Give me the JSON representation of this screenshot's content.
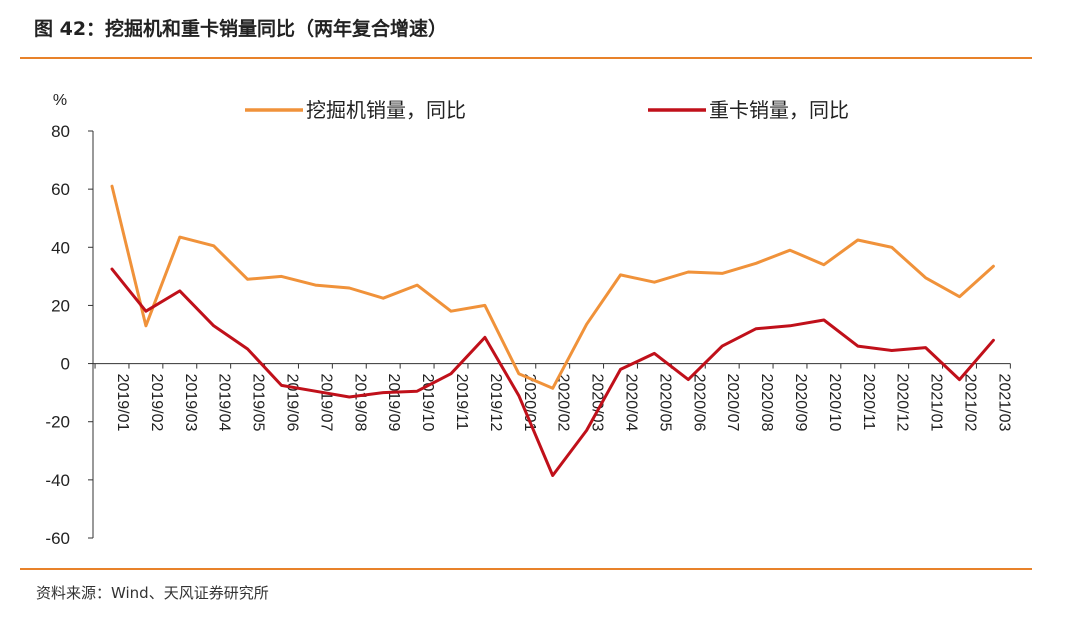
{
  "header": {
    "title": "图 42：挖掘机和重卡销量同比（两年复合增速）"
  },
  "footer": {
    "source": "资料来源：Wind、天风证券研究所"
  },
  "colors": {
    "rule": "#e8822a",
    "excavator": "#f0923a",
    "truck": "#c0101a",
    "axis": "#333333"
  },
  "chart_data": {
    "type": "line",
    "title": "",
    "xlabel": "",
    "ylabel": "%",
    "ylim": [
      -60,
      80
    ],
    "yticks": [
      80,
      60,
      40,
      20,
      0,
      -20,
      -40,
      -60
    ],
    "grid": false,
    "legend_position": "top",
    "categories": [
      "2019/01",
      "2019/02",
      "2019/03",
      "2019/04",
      "2019/05",
      "2019/06",
      "2019/07",
      "2019/08",
      "2019/09",
      "2019/10",
      "2019/11",
      "2019/12",
      "2020/01",
      "2020/02",
      "2020/03",
      "2020/04",
      "2020/05",
      "2020/06",
      "2020/07",
      "2020/08",
      "2020/09",
      "2020/10",
      "2020/11",
      "2020/12",
      "2021/01",
      "2021/02",
      "2021/03"
    ],
    "series": [
      {
        "name": "挖掘机销量，同比",
        "color": "#f0923a",
        "values": [
          61,
          13,
          43.5,
          40.5,
          29,
          30,
          27,
          26,
          22.5,
          27,
          18,
          20,
          -3.5,
          -8.5,
          13.5,
          30.5,
          28,
          31.5,
          31,
          34.5,
          39,
          34,
          42.5,
          40,
          29.5,
          23,
          33.5
        ]
      },
      {
        "name": "重卡销量，同比",
        "color": "#c0101a",
        "values": [
          32.5,
          18,
          25,
          13,
          5,
          -7.5,
          -9.5,
          -11.5,
          -10,
          -9.5,
          -3.5,
          9,
          -11,
          -38.5,
          -23,
          -2,
          3.5,
          -5.5,
          6,
          12,
          13,
          15,
          6,
          4.5,
          5.5,
          -5.5,
          8
        ]
      }
    ]
  }
}
